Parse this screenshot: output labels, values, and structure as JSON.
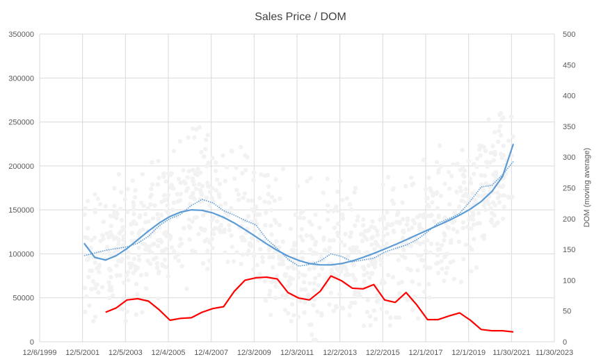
{
  "chart_data": {
    "type": "scatter",
    "title": "Sales Price / DOM",
    "xlabel": "",
    "ylabel": "",
    "y2label": "DOM (moving average)",
    "grid": true,
    "legend": "none",
    "x_ticks": [
      "12/6/1999",
      "12/5/2001",
      "12/5/2003",
      "12/4/2005",
      "12/4/2007",
      "12/3/2009",
      "12/3/2011",
      "12/2/2013",
      "12/2/2015",
      "12/1/2017",
      "12/1/2019",
      "11/30/2021",
      "11/30/2023"
    ],
    "xlim": [
      "1999-12-06",
      "2023-11-30"
    ],
    "ylim": [
      0,
      350000
    ],
    "y_ticks": [
      "0",
      "50000",
      "100000",
      "150000",
      "200000",
      "250000",
      "300000",
      "350000"
    ],
    "y2lim": [
      0,
      500
    ],
    "y2_ticks": [
      "0",
      "50",
      "100",
      "150",
      "200",
      "250",
      "300",
      "350",
      "400",
      "450",
      "500"
    ],
    "colors": {
      "scatter": "#f2f2f2",
      "trend": "#5b9bd5",
      "moving_avg": "#5b9bd5",
      "dom": "#ff0000",
      "grid": "#d9d9d9"
    },
    "series": [
      {
        "kind": "polynomial_trend",
        "axis": "left",
        "x": [
          "2002-01",
          "2002-07",
          "2003-01",
          "2003-07",
          "2004-01",
          "2004-07",
          "2005-01",
          "2005-07",
          "2006-01",
          "2006-07",
          "2007-01",
          "2007-07",
          "2008-01",
          "2008-07",
          "2009-01",
          "2009-07",
          "2010-01",
          "2010-07",
          "2011-01",
          "2011-07",
          "2012-01",
          "2012-07",
          "2013-01",
          "2013-07",
          "2014-01",
          "2014-07",
          "2015-01",
          "2015-07",
          "2016-01",
          "2016-07",
          "2017-01",
          "2017-07",
          "2018-01",
          "2018-07",
          "2019-01",
          "2019-07",
          "2020-01",
          "2020-07",
          "2021-01",
          "2021-07",
          "2022-01"
        ],
        "values": [
          112000,
          96000,
          93000,
          98000,
          106000,
          116000,
          126000,
          135000,
          142500,
          147500,
          150000,
          149500,
          146500,
          141500,
          135000,
          127500,
          119500,
          111500,
          104000,
          97500,
          92500,
          89000,
          87500,
          87500,
          89000,
          92000,
          96000,
          100500,
          105500,
          110500,
          116000,
          121500,
          127000,
          132500,
          138000,
          144000,
          151000,
          159500,
          171000,
          188000,
          225000
        ]
      },
      {
        "kind": "moving_average",
        "axis": "left",
        "x": [
          "2002-01",
          "2002-07",
          "2003-01",
          "2003-07",
          "2004-01",
          "2004-07",
          "2005-01",
          "2005-07",
          "2006-01",
          "2006-07",
          "2007-01",
          "2007-07",
          "2008-01",
          "2008-07",
          "2009-01",
          "2009-07",
          "2010-01",
          "2010-07",
          "2011-01",
          "2011-07",
          "2012-01",
          "2012-07",
          "2013-01",
          "2013-07",
          "2014-01",
          "2014-07",
          "2015-01",
          "2015-07",
          "2016-01",
          "2016-07",
          "2017-01",
          "2017-07",
          "2018-01",
          "2018-07",
          "2019-01",
          "2019-07",
          "2020-01",
          "2020-07",
          "2021-01",
          "2021-07",
          "2022-01"
        ],
        "values": [
          98000,
          101000,
          104000,
          106000,
          108000,
          112000,
          120000,
          132000,
          140000,
          145000,
          155000,
          162000,
          158000,
          149000,
          144000,
          138000,
          133000,
          117000,
          106000,
          94000,
          86000,
          88000,
          92000,
          100000,
          97000,
          91000,
          93000,
          95000,
          102000,
          106000,
          110000,
          116000,
          125000,
          135000,
          140000,
          146000,
          160000,
          176000,
          178000,
          190000,
          205000
        ]
      },
      {
        "kind": "dom_moving_average",
        "axis": "right",
        "x": [
          "2003-01",
          "2003-07",
          "2004-01",
          "2004-07",
          "2005-01",
          "2005-07",
          "2006-01",
          "2006-07",
          "2007-01",
          "2007-07",
          "2008-01",
          "2008-07",
          "2009-01",
          "2009-07",
          "2010-01",
          "2010-07",
          "2011-01",
          "2011-07",
          "2012-01",
          "2012-07",
          "2013-01",
          "2013-07",
          "2014-01",
          "2014-07",
          "2015-01",
          "2015-07",
          "2016-01",
          "2016-07",
          "2017-01",
          "2017-07",
          "2018-01",
          "2018-07",
          "2019-01",
          "2019-07",
          "2020-01",
          "2020-07",
          "2021-01",
          "2021-07",
          "2022-01"
        ],
        "values": [
          48,
          55,
          68,
          70,
          66,
          52,
          35,
          38,
          39,
          48,
          54,
          57,
          82,
          100,
          104,
          105,
          102,
          80,
          71,
          68,
          82,
          107,
          99,
          87,
          86,
          93,
          68,
          64,
          80,
          60,
          36,
          36,
          42,
          47,
          35,
          20,
          18,
          18,
          16
        ]
      }
    ]
  }
}
